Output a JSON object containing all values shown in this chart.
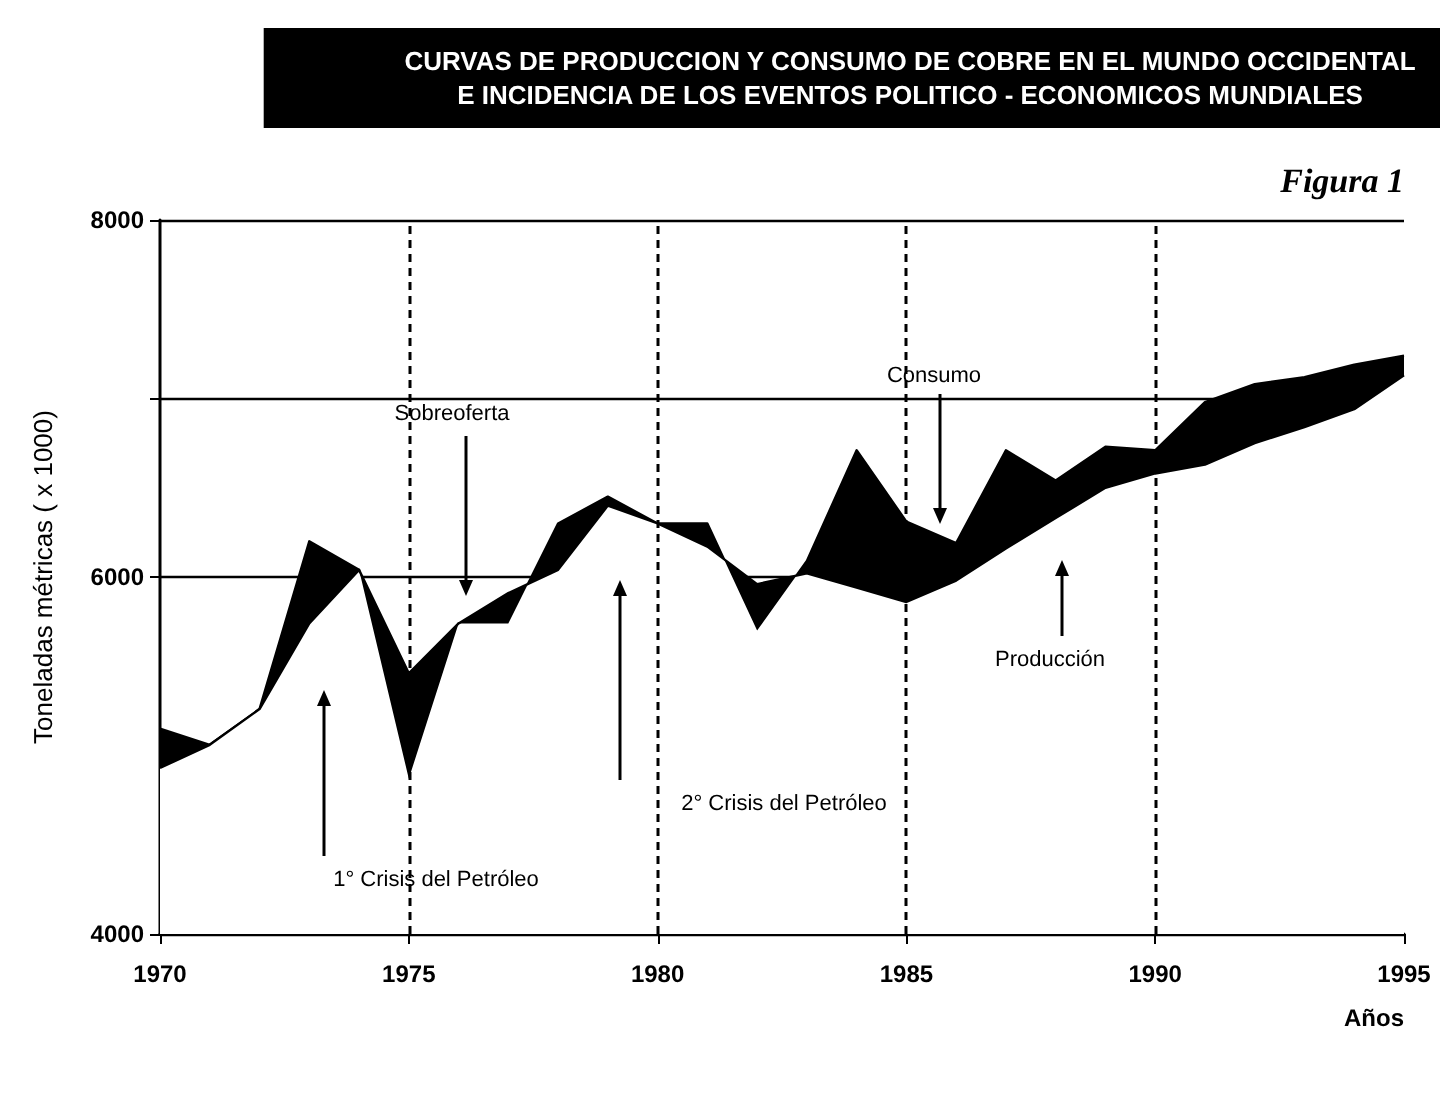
{
  "chart_data": {
    "type": "area",
    "title": "CURVAS DE PRODUCCION Y CONSUMO DE COBRE EN EL MUNDO OCCIDENTAL\nE INCIDENCIA DE LOS EVENTOS POLITICO - ECONOMICOS MUNDIALES",
    "xlabel": "Años",
    "ylabel": "Toneladas métricas ( x 1000)",
    "x": [
      1970,
      1971,
      1972,
      1973,
      1974,
      1975,
      1976,
      1977,
      1978,
      1979,
      1980,
      1981,
      1982,
      1983,
      1984,
      1985,
      1986,
      1987,
      1988,
      1989,
      1990,
      1991,
      1992,
      1993,
      1994,
      1995
    ],
    "series": [
      {
        "color": "#000000",
        "values": [
          5150,
          5060,
          5260,
          6200,
          6040,
          4870,
          5740,
          5740,
          6300,
          6450,
          6300,
          6300,
          5700,
          6090,
          6710,
          6310,
          6190,
          6710,
          6540,
          6730,
          6710,
          6980,
          7080,
          7120,
          7190,
          7240
        ]
      },
      {
        "color": "#000000",
        "values": [
          4930,
          5060,
          5260,
          5740,
          6040,
          5460,
          5740,
          5910,
          6040,
          6400,
          6300,
          6170,
          5960,
          6020,
          5940,
          5860,
          5980,
          6160,
          6330,
          6500,
          6580,
          6630,
          6750,
          6840,
          6940,
          7130
        ]
      }
    ],
    "xlim": [
      1970,
      1995
    ],
    "xticks": [
      1970,
      1975,
      1980,
      1985,
      1990,
      1995
    ],
    "ylim": [
      4000,
      8000
    ],
    "yticks": [
      4000,
      6000,
      {
        "value": 7000,
        "label": null
      },
      8000
    ],
    "grid": "y",
    "ref_lines": [
      {
        "axis": "x",
        "value": 1975,
        "line_style": "dashed"
      },
      {
        "axis": "x",
        "value": 1980,
        "line_style": "dashed"
      },
      {
        "axis": "x",
        "value": 1985,
        "line_style": "dashed"
      },
      {
        "axis": "x",
        "value": 1990,
        "line_style": "dashed"
      }
    ],
    "annotations": [
      "Sobreoferta",
      "1° Crisis del Petróleo",
      "2° Crisis del Petróleo",
      "Consumo",
      "Producción",
      "Figura 1"
    ]
  }
}
